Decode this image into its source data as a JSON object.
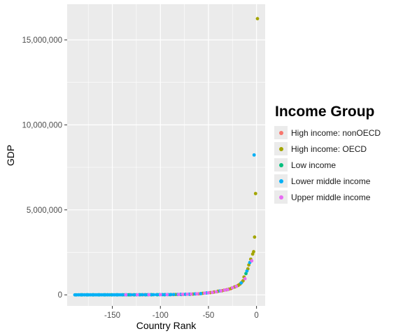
{
  "chart_data": {
    "type": "scatter",
    "title": "",
    "xlabel": "Country Rank",
    "ylabel": "GDP",
    "xlim": [
      -197,
      9
    ],
    "ylim": [
      -650000,
      17100000
    ],
    "x_ticks": [
      -150,
      -100,
      -50,
      0
    ],
    "x_tick_labels": [
      "-150",
      "-100",
      "-50",
      "0"
    ],
    "y_ticks": [
      0,
      5000000,
      10000000,
      15000000
    ],
    "y_tick_labels": [
      "0",
      "5,000,000",
      "10,000,000",
      "15,000,000"
    ],
    "grid": true,
    "legend_title": "Income Group",
    "legend_position": "right",
    "series": [
      {
        "name": "High income: nonOECD",
        "color": "#F8766D",
        "points": [
          [
            -130,
            4000
          ],
          [
            -118,
            6000
          ],
          [
            -87,
            15000
          ],
          [
            -76,
            25000
          ],
          [
            -60,
            60000
          ],
          [
            -45,
            150000
          ],
          [
            -41,
            190000
          ],
          [
            -34,
            270000
          ],
          [
            -27,
            360000
          ],
          [
            -20,
            530000
          ],
          [
            -18,
            600000
          ],
          [
            -15,
            760000
          ]
        ]
      },
      {
        "name": "High income: OECD",
        "color": "#A3A500",
        "points": [
          [
            -155,
            2500
          ],
          [
            -132,
            5000
          ],
          [
            -84,
            20000
          ],
          [
            -66,
            45000
          ],
          [
            -56,
            90000
          ],
          [
            -48,
            130000
          ],
          [
            -44,
            170000
          ],
          [
            -40,
            215000
          ],
          [
            -36,
            240000
          ],
          [
            -31,
            300000
          ],
          [
            -29,
            330000
          ],
          [
            -26,
            390000
          ],
          [
            -23,
            460000
          ],
          [
            -22,
            480000
          ],
          [
            -19,
            560000
          ],
          [
            -17,
            640000
          ],
          [
            -14,
            830000
          ],
          [
            -13,
            1050000
          ],
          [
            -9,
            1530000
          ],
          [
            -8,
            1760000
          ],
          [
            -6,
            2100000
          ],
          [
            -4,
            2400000
          ],
          [
            -3,
            2540000
          ],
          [
            -2,
            3400000
          ],
          [
            -1,
            5960000
          ],
          [
            1,
            16250000
          ]
        ]
      },
      {
        "name": "Low income",
        "color": "#00BF7D",
        "points": [
          [
            -188,
            100
          ],
          [
            -182,
            300
          ],
          [
            -176,
            500
          ],
          [
            -170,
            700
          ],
          [
            -164,
            900
          ],
          [
            -158,
            1200
          ],
          [
            -151,
            1600
          ],
          [
            -145,
            2000
          ],
          [
            -139,
            2600
          ],
          [
            -133,
            3200
          ],
          [
            -127,
            3800
          ],
          [
            -121,
            4500
          ],
          [
            -115,
            5200
          ],
          [
            -109,
            6000
          ],
          [
            -103,
            7000
          ],
          [
            -96,
            8500
          ],
          [
            -90,
            10000
          ],
          [
            -78,
            18000
          ],
          [
            -69,
            32000
          ],
          [
            -11,
            1250000
          ]
        ]
      },
      {
        "name": "Lower middle income",
        "color": "#00B0F6",
        "points": [
          [
            -189,
            50
          ],
          [
            -187,
            150
          ],
          [
            -185,
            250
          ],
          [
            -183,
            350
          ],
          [
            -181,
            450
          ],
          [
            -179,
            550
          ],
          [
            -177,
            650
          ],
          [
            -175,
            750
          ],
          [
            -173,
            850
          ],
          [
            -171,
            950
          ],
          [
            -169,
            1050
          ],
          [
            -167,
            1150
          ],
          [
            -165,
            1250
          ],
          [
            -163,
            1350
          ],
          [
            -161,
            1450
          ],
          [
            -159,
            1550
          ],
          [
            -157,
            1650
          ],
          [
            -155,
            1750
          ],
          [
            -153,
            1850
          ],
          [
            -150,
            2000
          ],
          [
            -148,
            2200
          ],
          [
            -146,
            2400
          ],
          [
            -144,
            2600
          ],
          [
            -142,
            2800
          ],
          [
            -140,
            3000
          ],
          [
            -137,
            3300
          ],
          [
            -135,
            3600
          ],
          [
            -131,
            4100
          ],
          [
            -128,
            4600
          ],
          [
            -125,
            5100
          ],
          [
            -122,
            5600
          ],
          [
            -119,
            6100
          ],
          [
            -116,
            6700
          ],
          [
            -113,
            7300
          ],
          [
            -110,
            8000
          ],
          [
            -107,
            8800
          ],
          [
            -104,
            9600
          ],
          [
            -101,
            10500
          ],
          [
            -98,
            11500
          ],
          [
            -95,
            12500
          ],
          [
            -92,
            14000
          ],
          [
            -89,
            16000
          ],
          [
            -86,
            18000
          ],
          [
            -82,
            22000
          ],
          [
            -79,
            27000
          ],
          [
            -74,
            33000
          ],
          [
            -70,
            40000
          ],
          [
            -64,
            55000
          ],
          [
            -58,
            75000
          ],
          [
            -52,
            110000
          ],
          [
            -38,
            230000
          ],
          [
            -16,
            700000
          ],
          [
            -10,
            1400000
          ],
          [
            -7,
            1900000
          ],
          [
            -2.5,
            8230000
          ]
        ]
      },
      {
        "name": "Upper middle income",
        "color": "#E76BF3",
        "points": [
          [
            -136,
            3500
          ],
          [
            -124,
            5300
          ],
          [
            -112,
            7600
          ],
          [
            -100,
            11000
          ],
          [
            -93,
            13500
          ],
          [
            -81,
            24000
          ],
          [
            -77,
            29000
          ],
          [
            -72,
            36000
          ],
          [
            -68,
            43000
          ],
          [
            -62,
            58000
          ],
          [
            -54,
            100000
          ],
          [
            -50,
            120000
          ],
          [
            -46,
            140000
          ],
          [
            -42,
            180000
          ],
          [
            -37,
            235000
          ],
          [
            -33,
            280000
          ],
          [
            -30,
            310000
          ],
          [
            -25,
            420000
          ],
          [
            -21,
            500000
          ],
          [
            -12,
            950000
          ],
          [
            -5,
            2000000
          ]
        ]
      }
    ]
  }
}
